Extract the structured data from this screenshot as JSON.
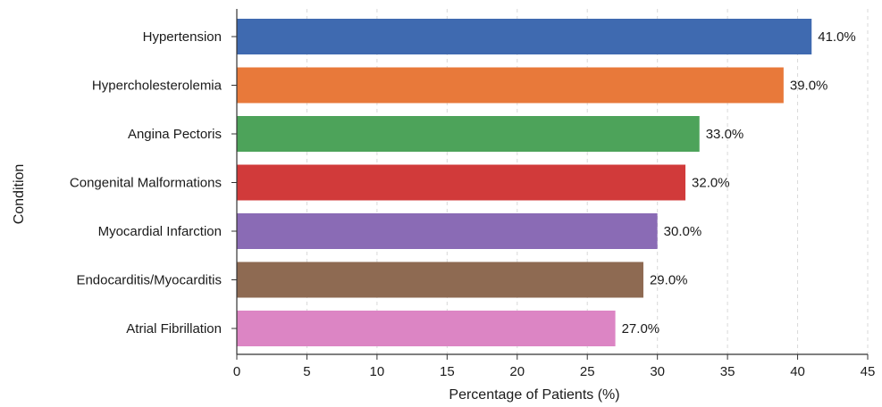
{
  "chart_data": {
    "type": "bar",
    "orientation": "horizontal",
    "title": "",
    "xlabel": "Percentage of Patients (%)",
    "ylabel": "Condition",
    "xlim": [
      0,
      45
    ],
    "xticks": [
      0,
      5,
      10,
      15,
      20,
      25,
      30,
      35,
      40,
      45
    ],
    "grid": "x-dashed",
    "categories": [
      "Hypertension",
      "Hypercholesterolemia",
      "Angina Pectoris",
      "Congenital Malformations",
      "Myocardial Infarction",
      "Endocarditis/Myocarditis",
      "Atrial Fibrillation"
    ],
    "bars": [
      {
        "value": 41.0,
        "label": "41.0%",
        "color": "#3f6ab0"
      },
      {
        "value": 39.0,
        "label": "39.0%",
        "color": "#e8793a"
      },
      {
        "value": 33.0,
        "label": "33.0%",
        "color": "#4da35a"
      },
      {
        "value": 32.0,
        "label": "32.0%",
        "color": "#d13a3a"
      },
      {
        "value": 30.0,
        "label": "30.0%",
        "color": "#8a6bb5"
      },
      {
        "value": 29.0,
        "label": "29.0%",
        "color": "#8e6a52"
      },
      {
        "value": 27.0,
        "label": "27.0%",
        "color": "#dc85c4"
      }
    ]
  }
}
